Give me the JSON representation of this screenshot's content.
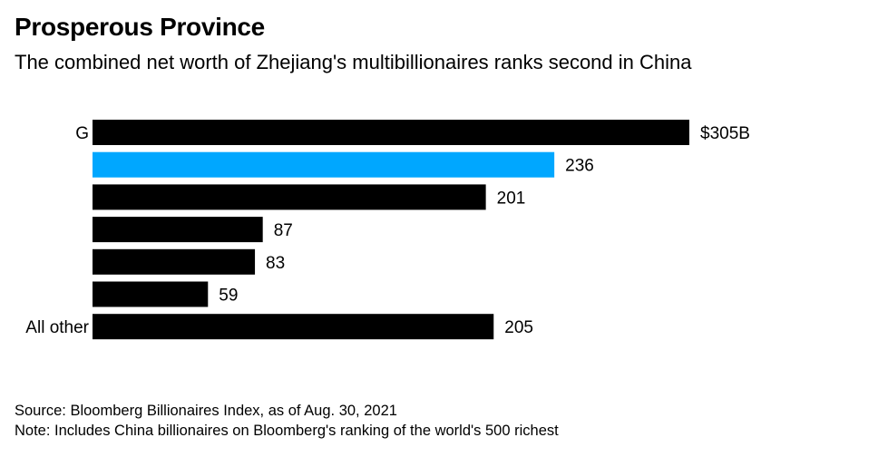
{
  "title": "Prosperous Province",
  "subtitle": "The combined net worth of Zhejiang's multibillionaires ranks second in China",
  "chart_data": {
    "type": "bar",
    "orientation": "horizontal",
    "categories": [
      "G",
      "",
      "",
      "",
      "",
      "",
      "All other"
    ],
    "values": [
      305,
      236,
      201,
      87,
      83,
      59,
      205
    ],
    "value_labels": [
      "$305B",
      "236",
      "201",
      "87",
      "83",
      "59",
      "205"
    ],
    "highlight_index": 1,
    "colors": {
      "default": "#000000",
      "highlight": "#00a7ff"
    },
    "xlim": [
      0,
      305
    ],
    "unit": "USD billions"
  },
  "source": "Source: Bloomberg Billionaires Index, as of Aug. 30, 2021",
  "note": "Note: Includes China billionaires on Bloomberg's ranking of the world's 500 richest"
}
